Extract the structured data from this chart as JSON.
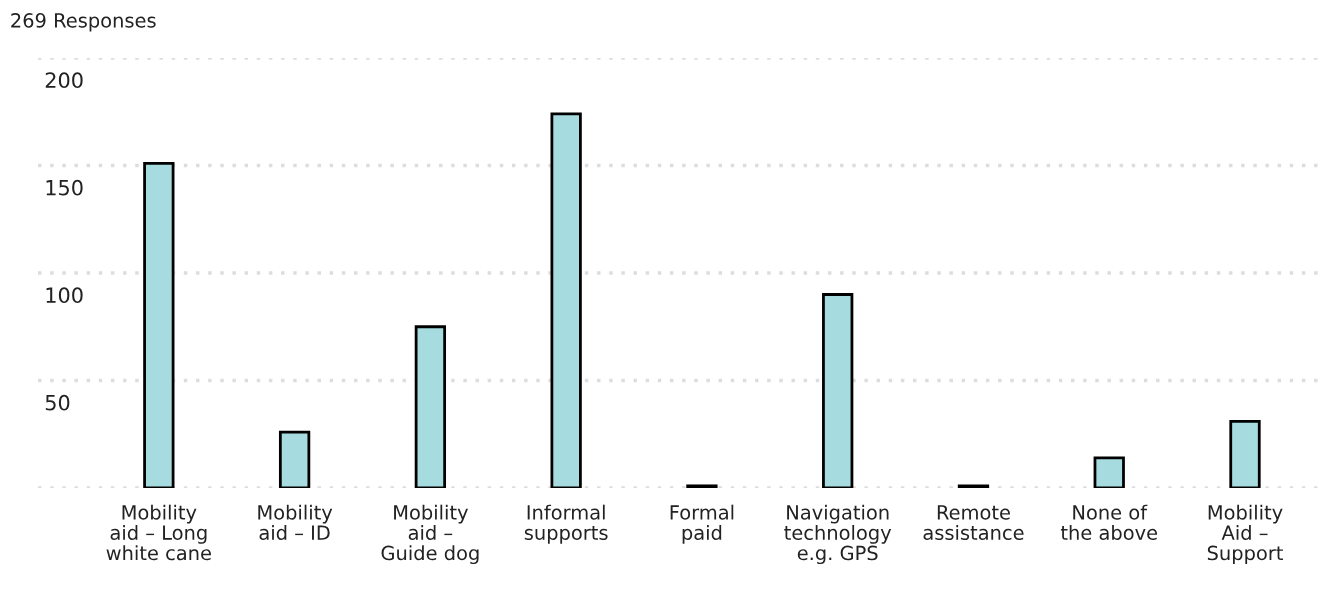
{
  "chart_data": {
    "type": "bar",
    "title": "269 Responses",
    "categories": [
      "Mobility\naid – Long\nwhite cane",
      "Mobility\naid – ID",
      "Mobility\naid –\nGuide dog",
      "Informal\nsupports",
      "Formal\npaid",
      "Navigation\ntechnology\ne.g. GPS",
      "Remote\nassistance",
      "None of\nthe above",
      "Mobility\nAid –\nSupport"
    ],
    "values": [
      151,
      26,
      75,
      174,
      1,
      90,
      1,
      14,
      31
    ],
    "color": "#a6dcdf",
    "ylim": [
      0,
      200
    ],
    "yticks": [
      {
        "value": 0,
        "label": null
      },
      50,
      100,
      150,
      200
    ],
    "grid": "y"
  }
}
